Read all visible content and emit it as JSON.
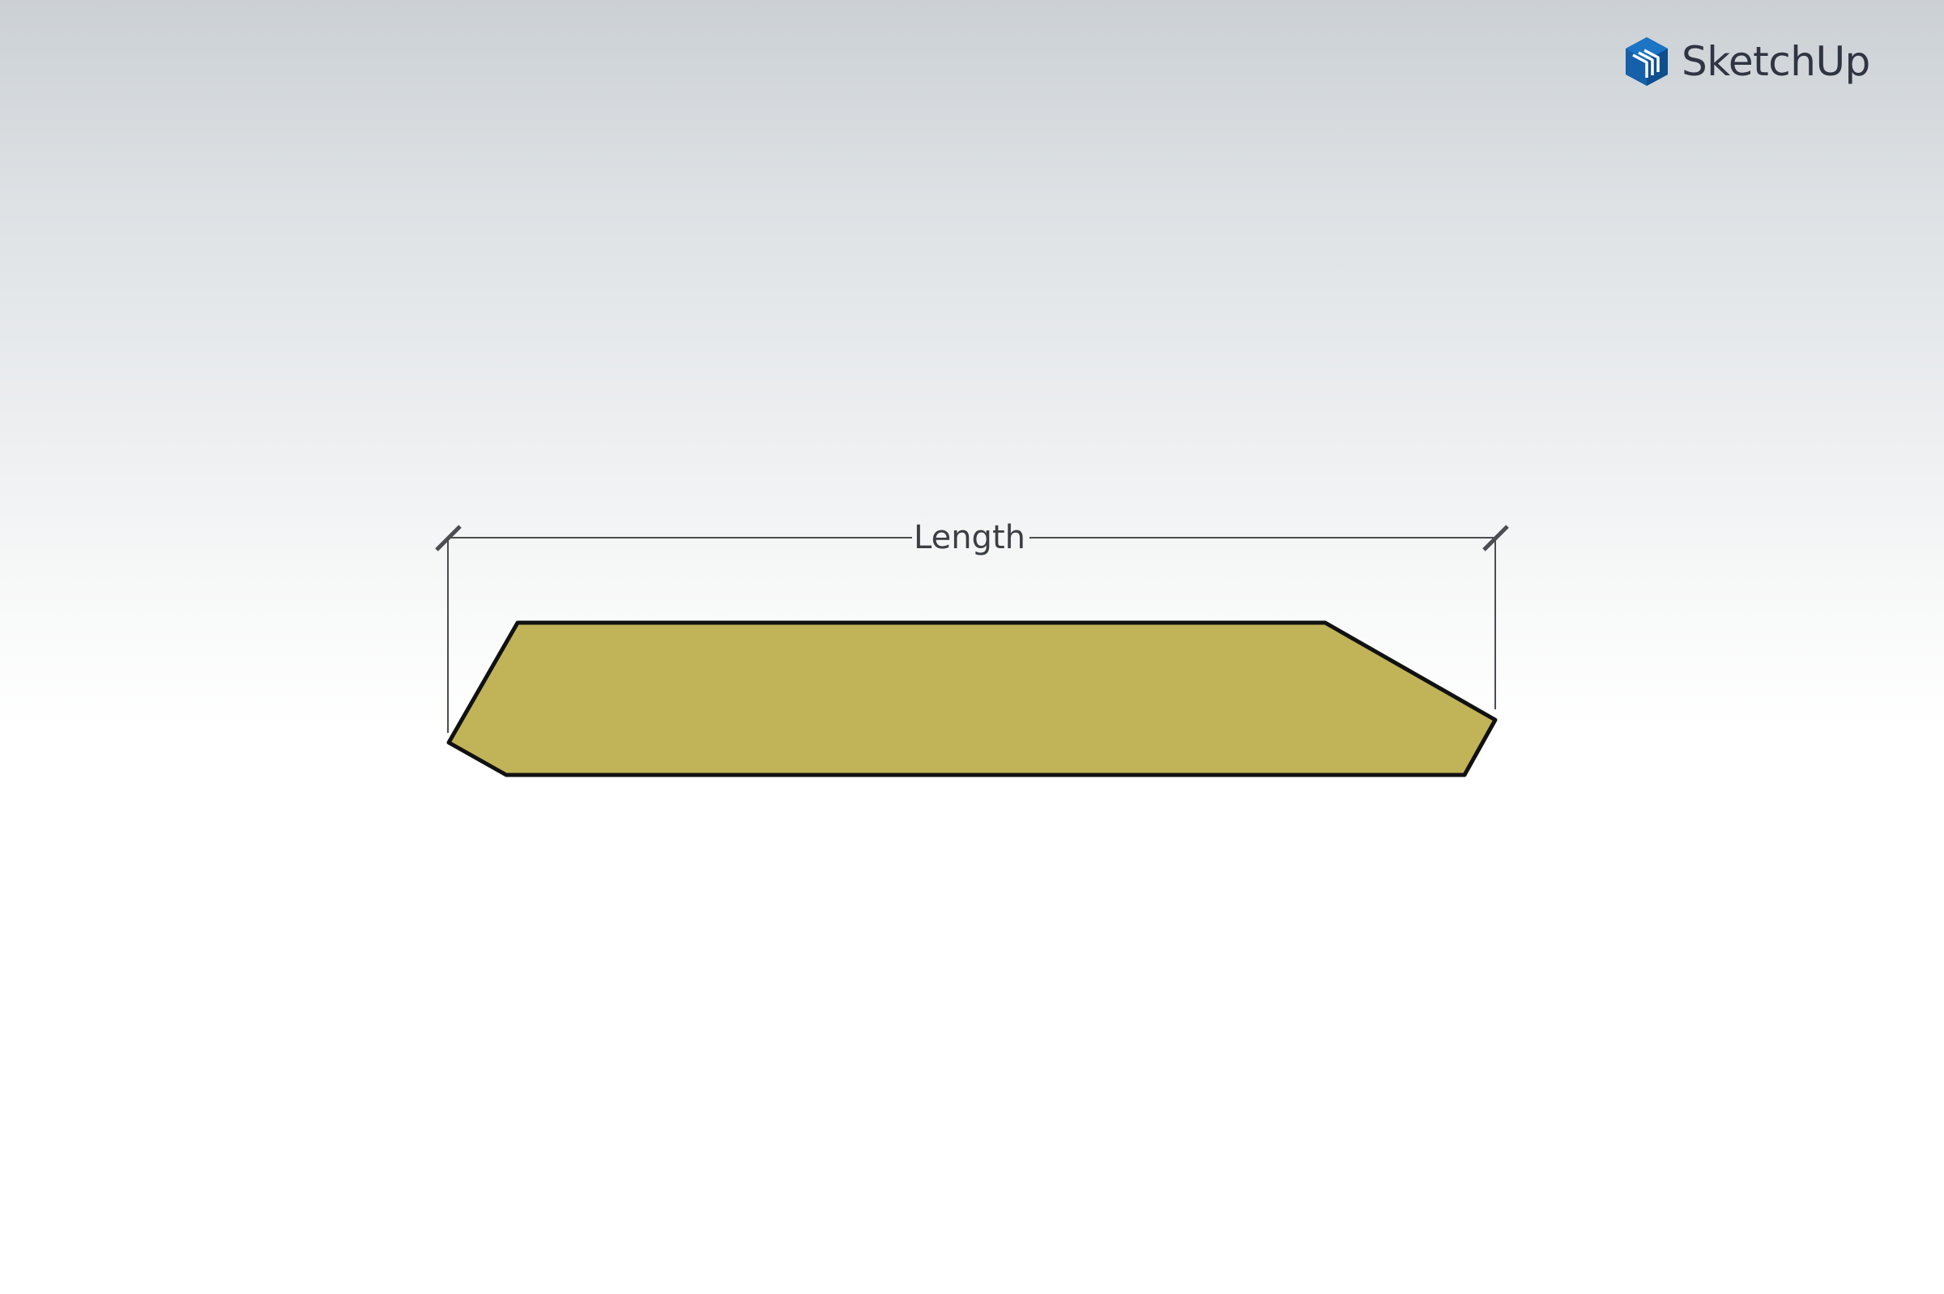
{
  "app": {
    "brand_name": "SketchUp",
    "brand_color": "#1560a8",
    "brand_text_color": "#2f3542"
  },
  "diagram": {
    "dimension_label": "Length",
    "board_fill_color": "#c1b458",
    "outline_color": "#111111",
    "dimension_line_color": "#4a4d51"
  },
  "icons": {
    "logo": "sketchup-logo-icon"
  }
}
